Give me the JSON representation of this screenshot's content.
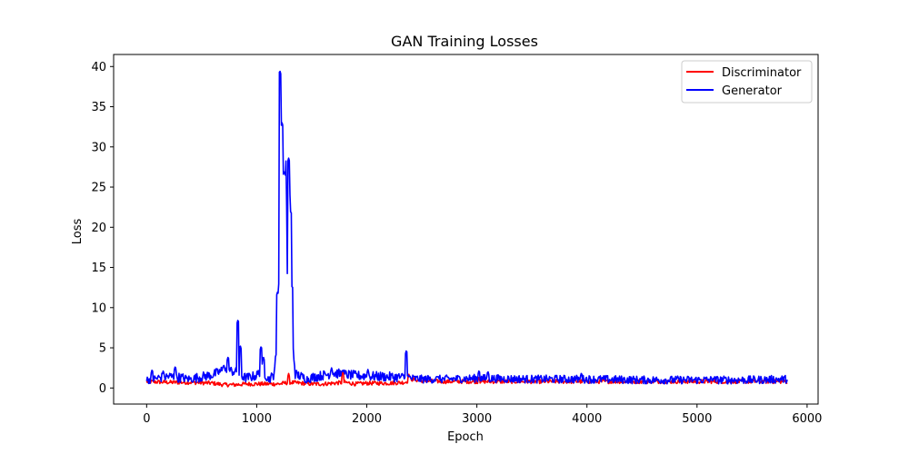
{
  "chart_data": {
    "type": "line",
    "title": "GAN Training Losses",
    "xlabel": "Epoch",
    "ylabel": "Loss",
    "xlim": [
      -300,
      6100
    ],
    "ylim": [
      -2,
      41.5
    ],
    "xticks": [
      0,
      1000,
      2000,
      3000,
      4000,
      5000,
      6000
    ],
    "yticks": [
      0,
      5,
      10,
      15,
      20,
      25,
      30,
      35,
      40
    ],
    "xtick_labels": [
      "0",
      "1000",
      "2000",
      "3000",
      "4000",
      "5000",
      "6000"
    ],
    "ytick_labels": [
      "0",
      "5",
      "10",
      "15",
      "20",
      "25",
      "30",
      "35",
      "40"
    ],
    "grid": false,
    "legend_position": "top-right",
    "x_max": 5820,
    "series": [
      {
        "name": "Discriminator",
        "color": "#ff0000",
        "anchors": [
          [
            0,
            0.7
          ],
          [
            200,
            0.6
          ],
          [
            400,
            0.6
          ],
          [
            600,
            0.5
          ],
          [
            700,
            0.3
          ],
          [
            800,
            0.3
          ],
          [
            900,
            0.4
          ],
          [
            1000,
            0.4
          ],
          [
            1100,
            0.4
          ],
          [
            1200,
            0.4
          ],
          [
            1300,
            0.6
          ],
          [
            1400,
            0.5
          ],
          [
            1500,
            0.4
          ],
          [
            1600,
            0.4
          ],
          [
            1700,
            0.5
          ],
          [
            1800,
            0.6
          ],
          [
            1900,
            0.4
          ],
          [
            2000,
            0.5
          ],
          [
            2200,
            0.5
          ],
          [
            2350,
            0.6
          ],
          [
            2400,
            1.0
          ],
          [
            2500,
            0.8
          ],
          [
            2700,
            0.7
          ],
          [
            3000,
            0.7
          ],
          [
            3500,
            0.7
          ],
          [
            4000,
            0.7
          ],
          [
            4500,
            0.7
          ],
          [
            5000,
            0.7
          ],
          [
            5500,
            0.7
          ],
          [
            5820,
            0.7
          ]
        ],
        "peaks": [
          [
            1290,
            1.8
          ],
          [
            1780,
            2.2
          ],
          [
            2380,
            1.8
          ],
          [
            2390,
            1.6
          ],
          [
            3020,
            1.4
          ]
        ]
      },
      {
        "name": "Generator",
        "color": "#0000ff",
        "anchors": [
          [
            0,
            0.8
          ],
          [
            200,
            1.2
          ],
          [
            400,
            0.9
          ],
          [
            600,
            1.4
          ],
          [
            700,
            2.0
          ],
          [
            800,
            1.8
          ],
          [
            900,
            1.0
          ],
          [
            1000,
            1.3
          ],
          [
            1050,
            2.2
          ],
          [
            1100,
            0.9
          ],
          [
            1150,
            1.2
          ],
          [
            1190,
            5.0
          ],
          [
            1200,
            12.0
          ],
          [
            1220,
            20.0
          ],
          [
            1250,
            18.0
          ],
          [
            1280,
            20.0
          ],
          [
            1310,
            15.0
          ],
          [
            1330,
            5.0
          ],
          [
            1350,
            1.5
          ],
          [
            1450,
            0.9
          ],
          [
            1550,
            1.2
          ],
          [
            1700,
            1.6
          ],
          [
            1900,
            1.3
          ],
          [
            2100,
            1.2
          ],
          [
            2300,
            1.1
          ],
          [
            2500,
            0.9
          ],
          [
            2700,
            0.9
          ],
          [
            3000,
            1.0
          ],
          [
            3500,
            0.9
          ],
          [
            4000,
            0.9
          ],
          [
            4500,
            0.8
          ],
          [
            5000,
            0.8
          ],
          [
            5500,
            0.8
          ],
          [
            5820,
            0.9
          ]
        ],
        "peaks": [
          [
            50,
            2.3
          ],
          [
            150,
            2.1
          ],
          [
            260,
            2.7
          ],
          [
            700,
            2.9
          ],
          [
            740,
            3.9
          ],
          [
            830,
            8.5
          ],
          [
            850,
            5.3
          ],
          [
            1040,
            5.2
          ],
          [
            1060,
            3.9
          ],
          [
            1190,
            12.0
          ],
          [
            1210,
            39.5
          ],
          [
            1230,
            33.0
          ],
          [
            1250,
            27.0
          ],
          [
            1260,
            26.5
          ],
          [
            1290,
            28.6
          ],
          [
            1310,
            22.0
          ],
          [
            1320,
            9.0
          ],
          [
            1680,
            2.5
          ],
          [
            1780,
            2.3
          ],
          [
            2010,
            2.3
          ],
          [
            2360,
            4.7
          ],
          [
            2650,
            1.5
          ],
          [
            3020,
            2.2
          ],
          [
            3100,
            2.1
          ],
          [
            3950,
            1.9
          ],
          [
            5150,
            1.3
          ]
        ]
      }
    ]
  }
}
